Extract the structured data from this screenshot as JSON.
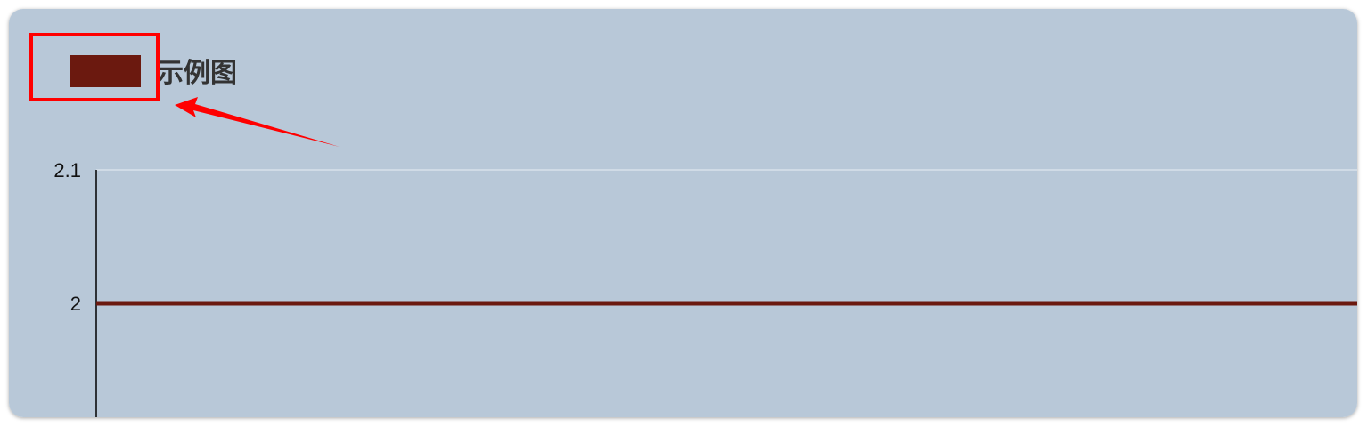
{
  "colors": {
    "background": "#b8c8d8",
    "series": "#6b190f",
    "axis": "#000000",
    "grid": "#dde6ef",
    "annotation": "#ff0000",
    "legend_text": "#333333"
  },
  "legend": {
    "label": "示例图",
    "swatch_color": "#6b190f",
    "highlighted": true
  },
  "annotation": {
    "type": "red-box-with-arrow",
    "target": "legend-swatch"
  },
  "chart_data": {
    "type": "line",
    "title": "",
    "xlabel": "",
    "ylabel": "",
    "ylim": [
      1.9,
      2.1
    ],
    "yticks": [
      {
        "value": 2.1,
        "label": "2.1"
      },
      {
        "value": 2,
        "label": "2"
      }
    ],
    "grid": true,
    "legend_position": "top-left",
    "series": [
      {
        "name": "示例图",
        "values": [
          2,
          2
        ]
      }
    ]
  }
}
